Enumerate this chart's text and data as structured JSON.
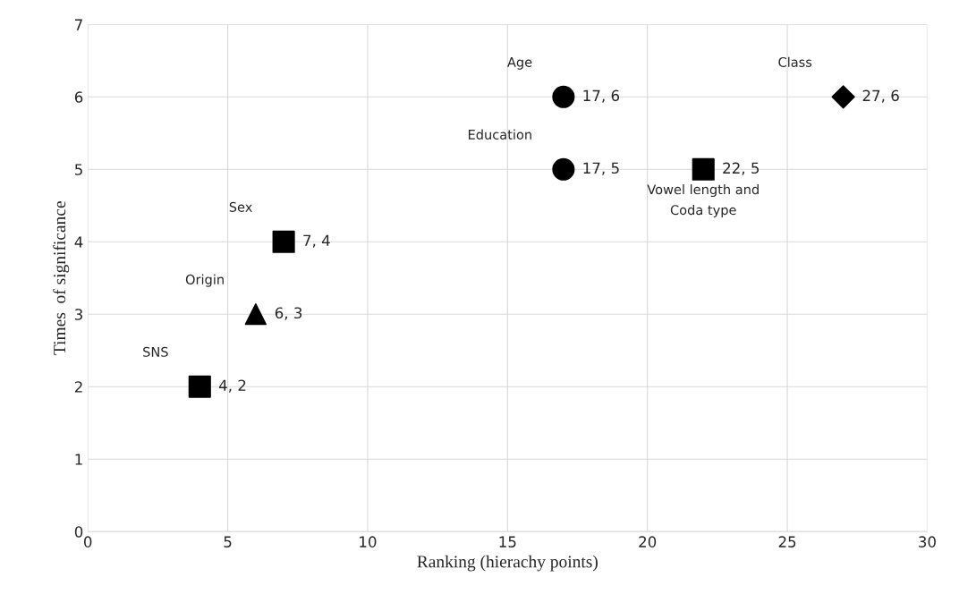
{
  "chart_data": {
    "type": "scatter",
    "xlabel": "Ranking (hierachy points)",
    "ylabel": "Times  of significance",
    "xlim": [
      0,
      30
    ],
    "xticks": [
      0,
      5,
      10,
      15,
      20,
      25,
      30
    ],
    "ylim": [
      0,
      7
    ],
    "yticks": [
      0,
      1,
      2,
      3,
      4,
      5,
      6,
      7
    ],
    "grid": true,
    "series": [
      {
        "name": "SNS",
        "color": "#000000",
        "marker": "square",
        "x": [
          4
        ],
        "values": [
          2
        ],
        "value_labels": [
          "4, 2"
        ]
      },
      {
        "name": "Origin",
        "color": "#000000",
        "marker": "triangle",
        "x": [
          6
        ],
        "values": [
          3
        ],
        "value_labels": [
          "6, 3"
        ]
      },
      {
        "name": "Sex",
        "color": "#000000",
        "marker": "square",
        "x": [
          7
        ],
        "values": [
          4
        ],
        "value_labels": [
          "7, 4"
        ]
      },
      {
        "name": "Age",
        "color": "#000000",
        "marker": "circle",
        "x": [
          17
        ],
        "values": [
          6
        ],
        "value_labels": [
          "17, 6"
        ]
      },
      {
        "name": "Education",
        "color": "#000000",
        "marker": "circle",
        "x": [
          17
        ],
        "values": [
          5
        ],
        "value_labels": [
          "17, 5"
        ]
      },
      {
        "name": "Vowel length and Coda type",
        "color": "#000000",
        "marker": "square",
        "x": [
          22
        ],
        "values": [
          5
        ],
        "value_labels": [
          "22, 5"
        ]
      },
      {
        "name": "Class",
        "color": "#000000",
        "marker": "diamond",
        "x": [
          27
        ],
        "values": [
          6
        ],
        "value_labels": [
          "27, 6"
        ]
      }
    ]
  }
}
